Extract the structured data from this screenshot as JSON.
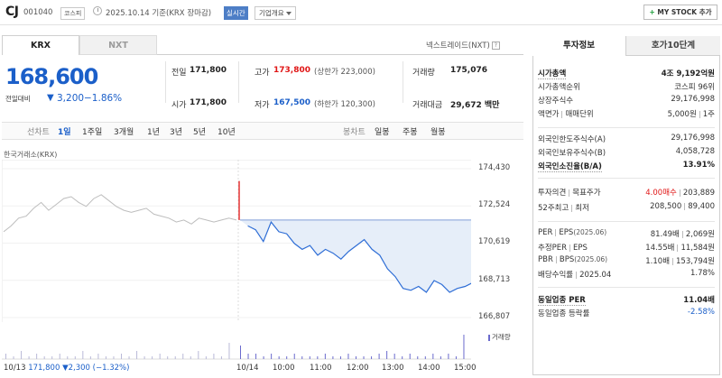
{
  "header": {
    "company": "CJ",
    "code": "001040",
    "market": "코스피",
    "date_text": "2025.10.14 기준(KRX 장마감)",
    "live_label": "실시간",
    "overview_label": "기업개요",
    "mystock_plus": "+",
    "mystock_label": "MY STOCK 추가"
  },
  "tabs": {
    "krx": "KRX",
    "nxt": "NXT",
    "nxt_link": "넥스트레이드(NXT)",
    "help": "?"
  },
  "price": {
    "current": "168,600",
    "change_label": "전일대비",
    "change_arrow": "▼",
    "change_value": "3,200",
    "change_pct": "−1.86%"
  },
  "summary": {
    "prev_close_label": "전일",
    "prev_close": "171,800",
    "high_label": "고가",
    "high": "173,800",
    "high_limit": "(상한가 223,000)",
    "volume_label": "거래량",
    "volume": "175,076",
    "open_label": "시가",
    "open": "171,800",
    "low_label": "저가",
    "low": "167,500",
    "low_limit": "(하한가 120,300)",
    "value_label": "거래대금",
    "value": "29,672 백만"
  },
  "periods": {
    "candle": "선차트",
    "items": [
      "1일",
      "1주일",
      "3개월",
      "1년",
      "3년",
      "5년",
      "10년"
    ],
    "active": "1일",
    "bong": "봉차트",
    "bong_items": [
      "일봉",
      "주봉",
      "월봉"
    ]
  },
  "chart_data": {
    "type": "line",
    "source": "한국거래소(KRX)",
    "y_ticks": [
      "174,430",
      "172,524",
      "170,619",
      "168,713",
      "166,807"
    ],
    "ylim": [
      166807,
      174430
    ],
    "x_ticks": [
      "10/14",
      "10:00",
      "11:00",
      "12:00",
      "13:00",
      "14:00",
      "15:00"
    ],
    "prev_close": 171800,
    "prev_day": {
      "name": "10/13",
      "values": [
        171200,
        171500,
        171900,
        172000,
        172400,
        172700,
        172300,
        172600,
        172900,
        173000,
        172700,
        172500,
        172900,
        173100,
        172800,
        172500,
        172300,
        172200,
        172300,
        172400,
        172100,
        172000,
        171900,
        171700,
        171800,
        171600,
        171900,
        171800,
        171700,
        171800,
        171900,
        171800
      ]
    },
    "today": {
      "name": "10/14",
      "values": [
        173800,
        171500,
        171300,
        170700,
        171700,
        171200,
        171100,
        170600,
        170300,
        170500,
        170000,
        170300,
        170100,
        169800,
        170200,
        170500,
        170800,
        170300,
        170000,
        169300,
        168900,
        168300,
        168200,
        168400,
        168100,
        168700,
        168500,
        168100,
        168300,
        168400,
        168600
      ]
    },
    "volume_label": "거래량",
    "volume_prev": [
      2,
      1,
      3,
      1,
      2,
      1,
      1,
      2,
      1,
      1,
      3,
      1,
      2,
      1,
      1,
      2,
      1,
      3,
      1,
      1,
      2,
      1,
      1,
      2,
      1,
      3,
      1,
      2,
      1,
      6
    ],
    "volume_today": [
      5,
      2,
      2,
      1,
      2,
      1,
      1,
      2,
      1,
      1,
      1,
      2,
      1,
      1,
      2,
      1,
      1,
      1,
      2,
      3,
      2,
      1,
      2,
      1,
      1,
      2,
      1,
      2,
      1,
      9
    ],
    "prev_footer": {
      "date": "10/13",
      "price": "171,800",
      "arrow": "▼",
      "change": "2,300",
      "pct": "(−1.32%)"
    },
    "colors": {
      "prev_line": "#bdbdbd",
      "today_line": "#2f6ed6",
      "fill": "#e6eef9",
      "ref_line": "#7f9ed6",
      "open_spike": "#e53333",
      "volume": "#6a6acd"
    }
  },
  "invest": {
    "tab1": "투자정보",
    "tab2": "호가10단계",
    "rows1": [
      {
        "label": "시가총액",
        "value": "4조 9,192억원",
        "bold": true
      },
      {
        "label": "시가총액순위",
        "value": "코스피 96위"
      },
      {
        "label": "상장주식수",
        "value": "29,176,998"
      },
      {
        "label": "액면가",
        "label2": "매매단위",
        "value": "5,000원",
        "value2": "1주"
      }
    ],
    "rows2": [
      {
        "label": "외국인한도주식수(A)",
        "value": "29,176,998"
      },
      {
        "label": "외국인보유주식수(B)",
        "value": "4,058,728"
      },
      {
        "label": "외국인소진율(B/A)",
        "value": "13.91%",
        "bold": true
      }
    ],
    "rows3": [
      {
        "label": "투자의견",
        "label2": "목표주가",
        "value": "4.00매수",
        "value2": "203,889"
      },
      {
        "label": "52주최고",
        "label2": "최저",
        "value": "208,500",
        "value2": "89,400"
      }
    ],
    "rows4": [
      {
        "label": "PER",
        "label2": "EPS",
        "note": "(2025.06)",
        "value": "81.49배",
        "value2": "2,069원"
      },
      {
        "label": "추정PER",
        "label2": "EPS",
        "value": "14.55배",
        "value2": "11,584원"
      },
      {
        "label": "PBR",
        "label2": "BPS",
        "note": "(2025.06)",
        "value": "1.10배",
        "value2": "153,794원"
      },
      {
        "label": "배당수익률",
        "label2": "2025.04",
        "value": "1.78%"
      }
    ],
    "rows5": [
      {
        "label": "동일업종 PER",
        "value": "11.04배",
        "bold": true
      },
      {
        "label": "동일업종 등락률",
        "value": "-2.58%"
      }
    ]
  }
}
